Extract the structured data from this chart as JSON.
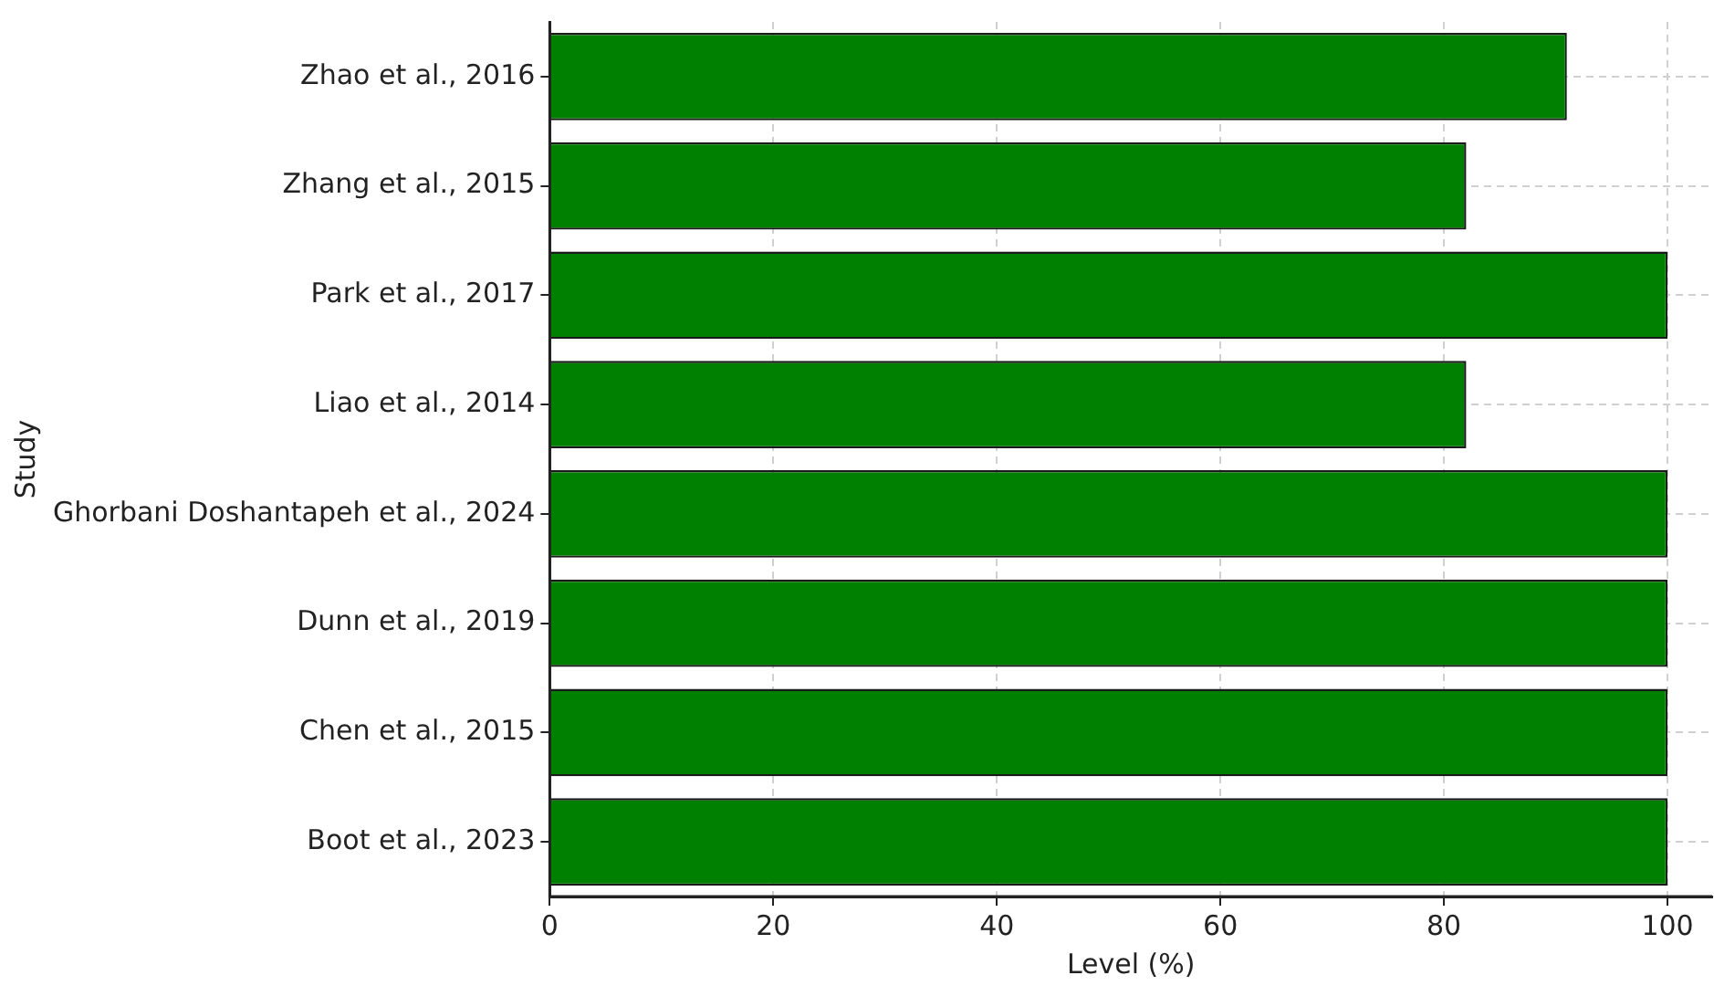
{
  "chart_data": {
    "type": "bar",
    "orientation": "horizontal",
    "xlabel": "Level (%)",
    "ylabel": "Study",
    "categories": [
      "Zhao et al., 2016",
      "Zhang et al., 2015",
      "Park et al., 2017",
      "Liao et al., 2014",
      "Ghorbani Doshantapeh et al., 2024",
      "Dunn et al., 2019",
      "Chen et al., 2015",
      "Boot et al., 2023"
    ],
    "values": [
      91,
      82,
      100,
      82,
      100,
      100,
      100,
      100
    ],
    "color": "#008000",
    "xlim": [
      0,
      104
    ],
    "xticks": [
      0,
      20,
      40,
      60,
      80,
      100
    ],
    "grid": true,
    "legend": false
  }
}
